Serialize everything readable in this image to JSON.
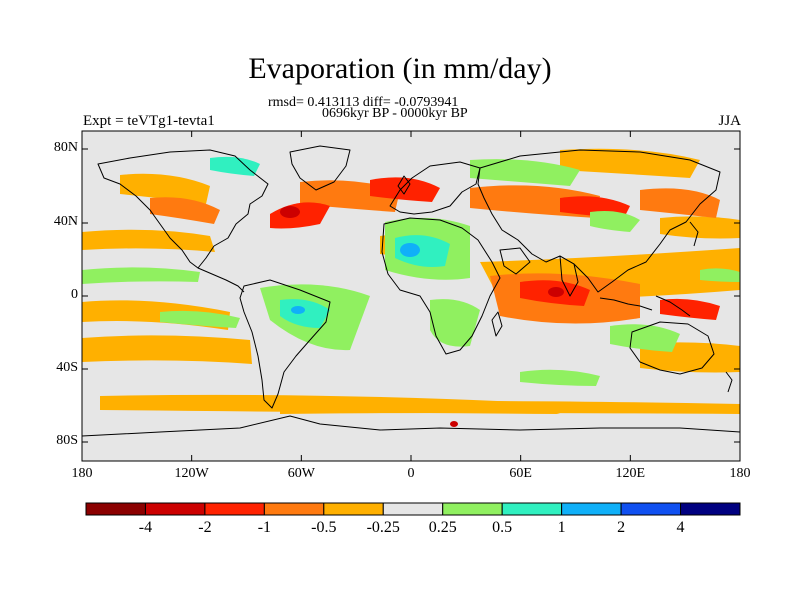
{
  "title": "Evaporation (in mm/day)",
  "stats_line": "rmsd= 0.413113 diff= -0.0793941",
  "period_line": "0696kyr BP - 0000kyr BP",
  "experiment_label": "Expt = teVTg1-tevta1",
  "season_label": "JJA",
  "y_ticks": [
    "80N",
    "40N",
    "0",
    "40S",
    "80S"
  ],
  "x_ticks": [
    "180",
    "120W",
    "60W",
    "0",
    "60E",
    "120E",
    "180"
  ],
  "colorbar": {
    "labels": [
      "-4",
      "-2",
      "-1",
      "-0.5",
      "-0.25",
      "0.25",
      "0.5",
      "1",
      "2",
      "4"
    ],
    "colors": [
      "#8B0000",
      "#CC0000",
      "#FF2200",
      "#FF7A10",
      "#FFB000",
      "#E6E6E6",
      "#90F060",
      "#30F0C0",
      "#10B0F8",
      "#1050F0",
      "#000080"
    ]
  },
  "map_fill_color": "#E6E6E6"
}
